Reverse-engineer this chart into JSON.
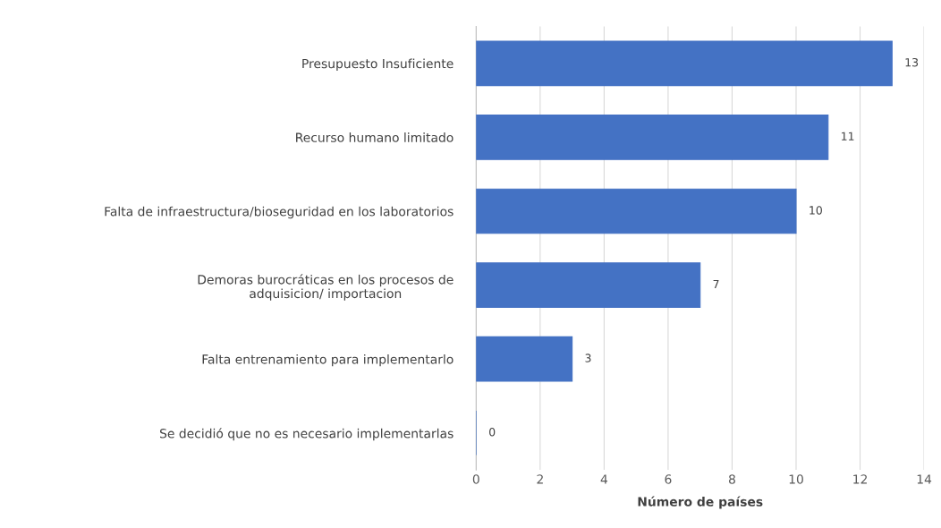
{
  "chart_data": {
    "type": "bar",
    "orientation": "horizontal",
    "categories": [
      "Presupuesto Insuficiente",
      "Recurso humano limitado",
      "Falta de infraestructura/bioseguridad en los laboratorios",
      "Demoras burocráticas en los procesos de\nadquisicion/ importacion",
      "Falta entrenamiento para implementarlo",
      "Se decidió que no es necesario implementarlas"
    ],
    "values": [
      13,
      11,
      10,
      7,
      3,
      0
    ],
    "color": "#4472c4",
    "xlabel": "Número de países",
    "xlim": [
      0,
      14
    ],
    "xticks": [
      0,
      2,
      4,
      6,
      8,
      10,
      12,
      14
    ],
    "grid": "x",
    "data_labels": true
  }
}
